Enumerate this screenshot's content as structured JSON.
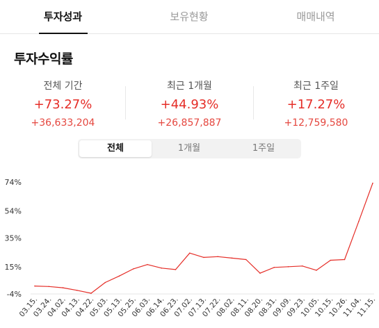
{
  "tabs": [
    {
      "label": "투자성과",
      "active": true
    },
    {
      "label": "보유현황",
      "active": false
    },
    {
      "label": "매매내역",
      "active": false
    }
  ],
  "section_title": "투자수익률",
  "stats": [
    {
      "label": "전체 기간",
      "pct": "+73.27%",
      "amount": "+36,633,204"
    },
    {
      "label": "최근 1개월",
      "pct": "+44.93%",
      "amount": "+26,857,887"
    },
    {
      "label": "최근 1주일",
      "pct": "+17.27%",
      "amount": "+12,759,580"
    }
  ],
  "period_options": [
    {
      "label": "전체",
      "active": true
    },
    {
      "label": "1개월",
      "active": false
    },
    {
      "label": "1주일",
      "active": false
    }
  ],
  "colors": {
    "positive": "#e52d27",
    "line": "#e52d27",
    "text": "#222222"
  },
  "chart_data": {
    "type": "line",
    "y_ticks": [
      "74%",
      "54%",
      "35%",
      "15%",
      "-4%"
    ],
    "y_tick_values": [
      74,
      54,
      35,
      15,
      -4
    ],
    "ylim": [
      -4,
      74
    ],
    "x_ticks": [
      "03.15.",
      "03.24.",
      "04.02.",
      "04.13.",
      "04.22.",
      "05.03.",
      "05.13.",
      "05.25.",
      "06.03.",
      "06.14.",
      "06.23.",
      "07.02.",
      "07.13.",
      "07.22.",
      "08.02.",
      "08.11.",
      "08.20.",
      "08.31.",
      "09.09.",
      "09.23.",
      "10.05.",
      "10.15.",
      "10.26.",
      "11.04.",
      "11.15."
    ],
    "series": [
      {
        "x": [
          "03.15.",
          "03.24.",
          "04.02.",
          "04.13.",
          "04.22.",
          "05.03.",
          "05.13.",
          "05.25.",
          "06.03.",
          "06.14.",
          "06.23.",
          "07.02.",
          "07.13.",
          "07.22.",
          "08.02.",
          "08.11.",
          "08.20.",
          "08.31.",
          "09.09.",
          "09.23.",
          "10.05.",
          "10.15.",
          "10.26.",
          "11.04.",
          "11.15."
        ],
        "values": [
          1.5,
          1.2,
          0.3,
          -1.5,
          -3.5,
          4.0,
          8.5,
          13.5,
          16.5,
          14.0,
          13.0,
          24.5,
          21.5,
          22.0,
          21.0,
          20.0,
          10.5,
          14.5,
          15.0,
          15.5,
          12.5,
          19.5,
          20.0,
          46.5,
          73.27
        ]
      }
    ]
  }
}
